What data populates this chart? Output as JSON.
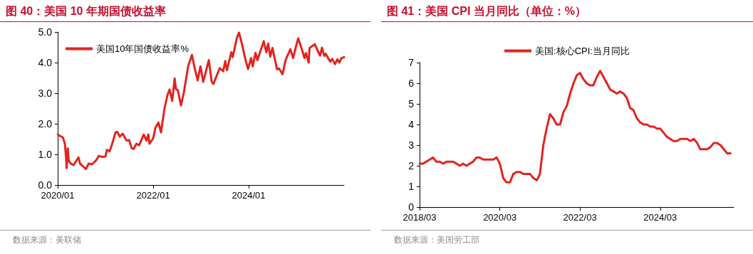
{
  "chart_data": [
    {
      "type": "line",
      "title": "图 40：美国 10 年期国债收益率",
      "annotations": [
        "数据来源：美联储"
      ],
      "legend": "top left",
      "grid": false,
      "marker": "none",
      "line_style": "solid",
      "xlim": [
        "2020-01-01",
        "2025-12-31"
      ],
      "xticks": [
        {
          "value": "2020-01-01",
          "label": "2020/01"
        },
        {
          "value": "2022-01-01",
          "label": "2022/01"
        },
        {
          "value": "2024-01-01",
          "label": "2024/01"
        }
      ],
      "ylim": [
        0,
        5
      ],
      "yticks": [
        {
          "value": 0,
          "label": "0.0"
        },
        {
          "value": 1,
          "label": "1.0"
        },
        {
          "value": 2,
          "label": "2.0"
        },
        {
          "value": 3,
          "label": "3.0"
        },
        {
          "value": 4,
          "label": "4.0"
        },
        {
          "value": 5,
          "label": "5.0"
        }
      ],
      "x": [
        "2020-01-02",
        "2020-01-20",
        "2020-02-10",
        "2020-02-25",
        "2020-03-05",
        "2020-03-09",
        "2020-03-18",
        "2020-03-25",
        "2020-04-10",
        "2020-05-01",
        "2020-06-08",
        "2020-06-20",
        "2020-07-15",
        "2020-08-04",
        "2020-08-25",
        "2020-09-20",
        "2020-10-20",
        "2020-11-10",
        "2020-12-01",
        "2020-12-31",
        "2021-01-12",
        "2021-02-01",
        "2021-02-25",
        "2021-03-18",
        "2021-03-31",
        "2021-04-20",
        "2021-05-12",
        "2021-06-10",
        "2021-06-30",
        "2021-07-20",
        "2021-08-05",
        "2021-08-25",
        "2021-09-15",
        "2021-10-20",
        "2021-11-10",
        "2021-11-24",
        "2021-12-03",
        "2021-12-31",
        "2022-01-18",
        "2022-02-10",
        "2022-03-01",
        "2022-03-28",
        "2022-04-20",
        "2022-05-06",
        "2022-05-26",
        "2022-06-14",
        "2022-06-24",
        "2022-07-08",
        "2022-08-01",
        "2022-08-22",
        "2022-09-26",
        "2022-10-24",
        "2022-11-15",
        "2022-12-07",
        "2022-12-28",
        "2023-01-18",
        "2023-03-02",
        "2023-03-24",
        "2023-04-06",
        "2023-05-01",
        "2023-05-25",
        "2023-06-20",
        "2023-07-06",
        "2023-07-19",
        "2023-08-21",
        "2023-09-01",
        "2023-10-03",
        "2023-10-19",
        "2023-11-10",
        "2023-12-06",
        "2023-12-27",
        "2024-01-19",
        "2024-02-01",
        "2024-02-22",
        "2024-03-08",
        "2024-04-25",
        "2024-05-15",
        "2024-05-29",
        "2024-06-14",
        "2024-07-01",
        "2024-08-05",
        "2024-08-20",
        "2024-09-16",
        "2024-10-10",
        "2024-11-15",
        "2024-12-06",
        "2024-12-31",
        "2025-01-14",
        "2025-02-07",
        "2025-03-03",
        "2025-03-14",
        "2025-04-04",
        "2025-04-11",
        "2025-05-21",
        "2025-06-30",
        "2025-07-15",
        "2025-08-01",
        "2025-08-12",
        "2025-09-16",
        "2025-10-01",
        "2025-10-22",
        "2025-11-10",
        "2025-11-25",
        "2025-12-10",
        "2025-12-31"
      ],
      "series": [
        {
          "name": "美国10年国债收益率%",
          "color": "#e3231e",
          "values": [
            1.65,
            1.6,
            1.55,
            1.35,
            0.9,
            0.55,
            1.2,
            0.8,
            0.7,
            0.65,
            0.9,
            0.7,
            0.6,
            0.52,
            0.7,
            0.68,
            0.8,
            0.95,
            0.92,
            0.93,
            1.15,
            1.1,
            1.4,
            1.72,
            1.74,
            1.58,
            1.68,
            1.45,
            1.47,
            1.2,
            1.18,
            1.35,
            1.3,
            1.65,
            1.45,
            1.65,
            1.35,
            1.52,
            1.87,
            2.04,
            1.72,
            2.5,
            2.94,
            3.12,
            2.75,
            3.48,
            3.13,
            3.1,
            2.6,
            3.0,
            3.9,
            4.25,
            3.8,
            3.42,
            3.88,
            3.37,
            4.08,
            3.38,
            3.3,
            3.57,
            3.82,
            3.72,
            4.05,
            3.75,
            4.34,
            4.18,
            4.81,
            4.98,
            4.62,
            4.12,
            3.79,
            4.15,
            3.88,
            4.32,
            4.08,
            4.7,
            4.34,
            4.62,
            4.2,
            4.48,
            3.78,
            3.81,
            3.62,
            4.09,
            4.44,
            4.15,
            4.58,
            4.79,
            4.49,
            4.15,
            4.31,
            4.0,
            4.48,
            4.6,
            4.23,
            4.49,
            4.22,
            4.29,
            4.03,
            4.12,
            3.95,
            4.11,
            4.0,
            4.14,
            4.18
          ]
        }
      ]
    },
    {
      "type": "line",
      "title": "图 41：美国 CPI 当月同比（单位：%）",
      "annotations": [
        "数据来源：美国劳工部"
      ],
      "legend": "top",
      "grid": false,
      "marker": "none",
      "line_style": "solid",
      "xlim": [
        "2018-03-01",
        "2025-12-31"
      ],
      "xticks": [
        {
          "value": "2018-03-01",
          "label": "2018/03"
        },
        {
          "value": "2020-03-01",
          "label": "2020/03"
        },
        {
          "value": "2022-03-01",
          "label": "2022/03"
        },
        {
          "value": "2024-03-01",
          "label": "2024/03"
        }
      ],
      "ylim": [
        0,
        7
      ],
      "yticks": [
        0,
        1,
        2,
        3,
        4,
        5,
        6,
        7
      ],
      "x": [
        "2018-03",
        "2018-04",
        "2018-05",
        "2018-06",
        "2018-07",
        "2018-08",
        "2018-09",
        "2018-10",
        "2018-11",
        "2018-12",
        "2019-01",
        "2019-02",
        "2019-03",
        "2019-04",
        "2019-05",
        "2019-06",
        "2019-07",
        "2019-08",
        "2019-09",
        "2019-10",
        "2019-11",
        "2019-12",
        "2020-01",
        "2020-02",
        "2020-03",
        "2020-04",
        "2020-05",
        "2020-06",
        "2020-07",
        "2020-08",
        "2020-09",
        "2020-10",
        "2020-11",
        "2020-12",
        "2021-01",
        "2021-02",
        "2021-03",
        "2021-04",
        "2021-05",
        "2021-06",
        "2021-07",
        "2021-08",
        "2021-09",
        "2021-10",
        "2021-11",
        "2021-12",
        "2022-01",
        "2022-02",
        "2022-03",
        "2022-04",
        "2022-05",
        "2022-06",
        "2022-07",
        "2022-08",
        "2022-09",
        "2022-10",
        "2022-11",
        "2022-12",
        "2023-01",
        "2023-02",
        "2023-03",
        "2023-04",
        "2023-05",
        "2023-06",
        "2023-07",
        "2023-08",
        "2023-09",
        "2023-10",
        "2023-11",
        "2023-12",
        "2024-01",
        "2024-02",
        "2024-03",
        "2024-04",
        "2024-05",
        "2024-06",
        "2024-07",
        "2024-08",
        "2024-09",
        "2024-10",
        "2024-11",
        "2024-12",
        "2025-01",
        "2025-02",
        "2025-03",
        "2025-04",
        "2025-05",
        "2025-06",
        "2025-07",
        "2025-08",
        "2025-09",
        "2025-11",
        "2025-12"
      ],
      "series": [
        {
          "name": "美国:核心CPI:当月同比",
          "color": "#e3231e",
          "values": [
            2.1,
            2.1,
            2.2,
            2.3,
            2.4,
            2.2,
            2.2,
            2.1,
            2.2,
            2.2,
            2.2,
            2.1,
            2.0,
            2.1,
            2.0,
            2.1,
            2.2,
            2.4,
            2.4,
            2.3,
            2.3,
            2.3,
            2.3,
            2.4,
            2.1,
            1.4,
            1.2,
            1.2,
            1.6,
            1.7,
            1.7,
            1.6,
            1.6,
            1.6,
            1.4,
            1.3,
            1.6,
            3.0,
            3.8,
            4.5,
            4.3,
            4.0,
            4.0,
            4.6,
            4.9,
            5.5,
            6.0,
            6.4,
            6.5,
            6.2,
            6.0,
            5.9,
            5.9,
            6.3,
            6.6,
            6.3,
            6.0,
            5.7,
            5.6,
            5.5,
            5.6,
            5.5,
            5.3,
            4.8,
            4.7,
            4.3,
            4.1,
            4.0,
            4.0,
            3.9,
            3.9,
            3.8,
            3.8,
            3.6,
            3.4,
            3.3,
            3.2,
            3.2,
            3.3,
            3.3,
            3.3,
            3.2,
            3.3,
            3.1,
            2.8,
            2.8,
            2.8,
            2.9,
            3.1,
            3.1,
            3.0,
            2.6,
            2.6
          ]
        }
      ]
    }
  ]
}
